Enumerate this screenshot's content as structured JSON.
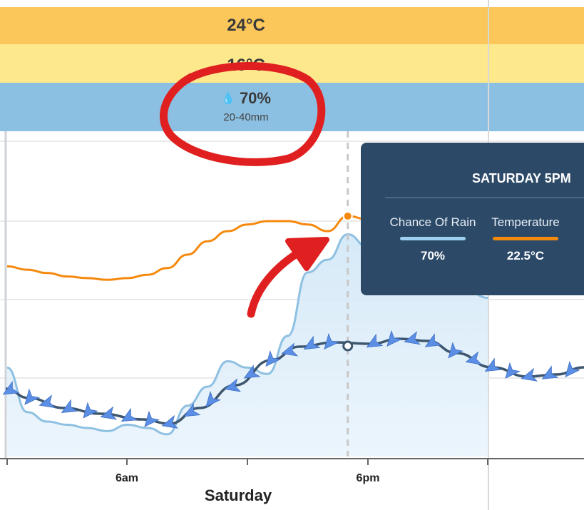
{
  "bands": {
    "temp_max": "24°C",
    "temp_min": "16°C",
    "rain_chance": "70%",
    "rain_amount": "20-40mm"
  },
  "axis": {
    "ticks": [
      "6am",
      "6pm"
    ],
    "day": "Saturday"
  },
  "tooltip": {
    "title": "SATURDAY 5PM",
    "rain_label": "Chance Of Rain",
    "rain_value": "70%",
    "temp_label": "Temperature",
    "temp_value": "22.5°C"
  },
  "colors": {
    "temperature": "#f5890e",
    "rain_line": "#8ec0e2",
    "wind_line": "#3d566e",
    "arrow": "#5b8fe6",
    "annotation": "#e02020",
    "tooltip_bg": "#2c4a68"
  },
  "chart_data": {
    "type": "line",
    "x": [
      0,
      1,
      2,
      3,
      4,
      5,
      6,
      7,
      8,
      9,
      10,
      11,
      12,
      13,
      14,
      15,
      16,
      17,
      18,
      19,
      20,
      21,
      22,
      23,
      24
    ],
    "series": [
      {
        "name": "Temperature",
        "values": [
          19.5,
          19.3,
          19.1,
          18.9,
          18.8,
          18.7,
          18.8,
          19.0,
          19.4,
          20.2,
          21.0,
          21.6,
          22.0,
          22.2,
          22.2,
          22.0,
          21.6,
          22.5,
          22.3,
          22.1,
          21.9,
          21.7,
          21.6,
          21.4,
          21.3
        ]
      },
      {
        "name": "Chance Of Rain",
        "values": [
          28,
          14,
          11,
          10,
          9,
          8,
          10,
          9,
          7,
          16,
          22,
          30,
          28,
          26,
          38,
          58,
          62,
          70,
          66,
          63,
          60,
          58,
          55,
          52,
          50
        ]
      }
    ],
    "highlight": {
      "x": 17,
      "temperature": 22.5,
      "chance_of_rain": 70
    }
  }
}
